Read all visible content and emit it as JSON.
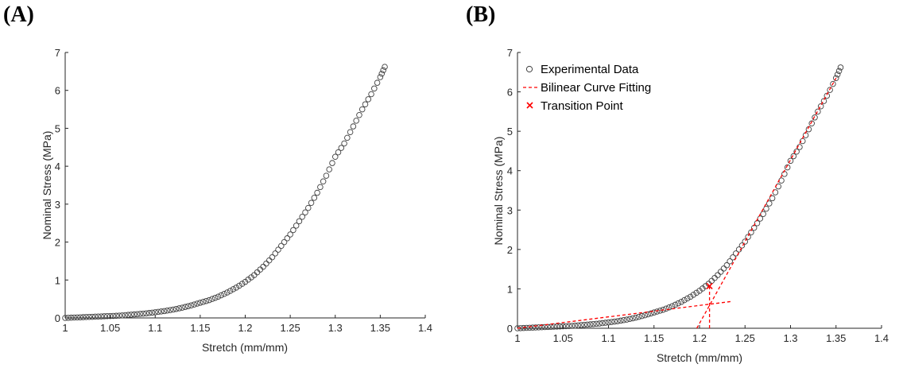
{
  "panels": [
    {
      "label": "(A)"
    },
    {
      "label": "(B)"
    }
  ],
  "chart_data": [
    {
      "type": "scatter",
      "title": "",
      "xlabel": "Stretch (mm/mm)",
      "ylabel": "Nominal Stress (MPa)",
      "xlim": [
        1,
        1.4
      ],
      "ylim": [
        0,
        7
      ],
      "xticks": [
        "1",
        "1.05",
        "1.1",
        "1.15",
        "1.2",
        "1.25",
        "1.3",
        "1.35",
        "1.4"
      ],
      "yticks": [
        "0",
        "1",
        "2",
        "3",
        "4",
        "5",
        "6",
        "7"
      ],
      "grid": false,
      "legend": null,
      "series": [
        {
          "marker": "open-circle",
          "color": "#404040",
          "x": [
            1.0,
            1.01,
            1.02,
            1.03,
            1.04,
            1.05,
            1.06,
            1.07,
            1.08,
            1.09,
            1.1,
            1.11,
            1.12,
            1.13,
            1.14,
            1.15,
            1.16,
            1.17,
            1.18,
            1.19,
            1.2,
            1.21,
            1.22,
            1.23,
            1.24,
            1.25,
            1.26,
            1.27,
            1.28,
            1.29,
            1.3,
            1.31,
            1.32,
            1.33,
            1.34,
            1.35,
            1.355
          ],
          "y": [
            0.0,
            0.01,
            0.02,
            0.03,
            0.04,
            0.05,
            0.06,
            0.08,
            0.1,
            0.12,
            0.15,
            0.18,
            0.22,
            0.27,
            0.33,
            0.4,
            0.47,
            0.56,
            0.67,
            0.8,
            0.95,
            1.13,
            1.35,
            1.6,
            1.9,
            2.2,
            2.55,
            2.9,
            3.3,
            3.75,
            4.25,
            4.6,
            5.05,
            5.5,
            5.9,
            6.35,
            6.62
          ]
        }
      ]
    },
    {
      "type": "scatter",
      "title": "",
      "xlabel": "Stretch (mm/mm)",
      "ylabel": "Nominal Stress (MPa)",
      "xlim": [
        1,
        1.4
      ],
      "ylim": [
        0,
        7
      ],
      "xticks": [
        "1",
        "1.05",
        "1.1",
        "1.15",
        "1.2",
        "1.25",
        "1.3",
        "1.35",
        "1.4"
      ],
      "yticks": [
        "0",
        "1",
        "2",
        "3",
        "4",
        "5",
        "6",
        "7"
      ],
      "grid": false,
      "legend": "top-left",
      "series": [
        {
          "name": "Experimental Data",
          "marker": "open-circle",
          "color": "#404040",
          "x": [
            1.0,
            1.01,
            1.02,
            1.03,
            1.04,
            1.05,
            1.06,
            1.07,
            1.08,
            1.09,
            1.1,
            1.11,
            1.12,
            1.13,
            1.14,
            1.15,
            1.16,
            1.17,
            1.18,
            1.19,
            1.2,
            1.21,
            1.22,
            1.23,
            1.24,
            1.25,
            1.26,
            1.27,
            1.28,
            1.29,
            1.3,
            1.31,
            1.32,
            1.33,
            1.34,
            1.35,
            1.355
          ],
          "y": [
            0.0,
            0.01,
            0.02,
            0.03,
            0.04,
            0.05,
            0.06,
            0.08,
            0.1,
            0.12,
            0.15,
            0.18,
            0.22,
            0.27,
            0.33,
            0.4,
            0.47,
            0.56,
            0.67,
            0.8,
            0.95,
            1.13,
            1.35,
            1.6,
            1.9,
            2.2,
            2.55,
            2.9,
            3.3,
            3.75,
            4.25,
            4.6,
            5.05,
            5.5,
            5.9,
            6.35,
            6.62
          ]
        },
        {
          "name": "Bilinear Curve Fitting",
          "style": "dashed-line",
          "color": "#ff0000",
          "lines": [
            {
              "x": [
                1.0,
                1.235
              ],
              "y": [
                0.0,
                0.68
              ]
            },
            {
              "x": [
                1.197,
                1.35
              ],
              "y": [
                0.0,
                6.35
              ]
            },
            {
              "x": [
                1.211,
                1.211
              ],
              "y": [
                0.0,
                1.07
              ]
            }
          ]
        },
        {
          "name": "Transition Point",
          "marker": "x",
          "color": "#ff0000",
          "x": [
            1.211
          ],
          "y": [
            1.07
          ]
        }
      ]
    }
  ]
}
